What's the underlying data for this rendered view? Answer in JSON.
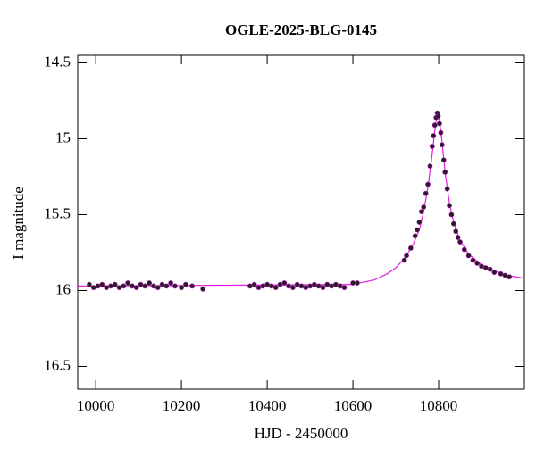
{
  "chart_data": {
    "type": "scatter",
    "title": "OGLE-2025-BLG-0145",
    "x_label": "HJD - 2450000",
    "y_label": "I magnitude",
    "xlim": [
      9958,
      11000
    ],
    "ylim": [
      16.65,
      14.45
    ],
    "xticks": [
      10000,
      10200,
      10400,
      10600,
      10800
    ],
    "yticks": [
      14.5,
      15,
      15.5,
      16,
      16.5
    ],
    "series": [
      {
        "type": "scatter",
        "color": "#2a1a2a",
        "x": [
          9985,
          9995,
          10005,
          10015,
          10025,
          10035,
          10045,
          10055,
          10065,
          10075,
          10085,
          10095,
          10105,
          10115,
          10125,
          10135,
          10145,
          10155,
          10165,
          10175,
          10185,
          10200,
          10210,
          10225,
          10250,
          10360,
          10370,
          10380,
          10390,
          10400,
          10410,
          10420,
          10430,
          10440,
          10450,
          10460,
          10470,
          10480,
          10490,
          10500,
          10510,
          10520,
          10530,
          10540,
          10550,
          10560,
          10570,
          10580,
          10600,
          10610,
          10720,
          10725,
          10735,
          10745,
          10750,
          10755,
          10760,
          10765,
          10770,
          10775,
          10780,
          10785,
          10788,
          10791,
          10794,
          10797,
          10799,
          10802,
          10805,
          10808,
          10812,
          10815,
          10820,
          10825,
          10830,
          10835,
          10840,
          10845,
          10850,
          10860,
          10870,
          10880,
          10890,
          10900,
          10910,
          10920,
          10930,
          10945,
          10955,
          10965
        ],
        "values": [
          15.96,
          15.98,
          15.97,
          15.96,
          15.98,
          15.97,
          15.96,
          15.98,
          15.97,
          15.95,
          15.97,
          15.98,
          15.96,
          15.97,
          15.95,
          15.97,
          15.98,
          15.96,
          15.97,
          15.95,
          15.97,
          15.98,
          15.96,
          15.97,
          15.99,
          15.97,
          15.96,
          15.98,
          15.97,
          15.96,
          15.97,
          15.98,
          15.96,
          15.95,
          15.97,
          15.98,
          15.96,
          15.97,
          15.98,
          15.97,
          15.96,
          15.97,
          15.98,
          15.96,
          15.97,
          15.96,
          15.97,
          15.98,
          15.95,
          15.95,
          15.8,
          15.77,
          15.72,
          15.64,
          15.6,
          15.55,
          15.48,
          15.45,
          15.36,
          15.3,
          15.18,
          15.05,
          14.98,
          14.91,
          14.86,
          14.83,
          14.85,
          14.9,
          14.96,
          15.04,
          15.14,
          15.22,
          15.33,
          15.44,
          15.5,
          15.56,
          15.61,
          15.65,
          15.68,
          15.73,
          15.77,
          15.8,
          15.82,
          15.84,
          15.85,
          15.86,
          15.88,
          15.89,
          15.9,
          15.91
        ]
      },
      {
        "type": "line",
        "color": "#e020e0",
        "x": [
          9958,
          10600,
          10650,
          10680,
          10700,
          10720,
          10740,
          10755,
          10765,
          10775,
          10785,
          10792,
          10797,
          10802,
          10808,
          10815,
          10825,
          10835,
          10850,
          10870,
          10900,
          10930,
          10960,
          11000
        ],
        "values": [
          15.97,
          15.96,
          15.93,
          15.89,
          15.85,
          15.79,
          15.7,
          15.6,
          15.48,
          15.32,
          15.1,
          14.92,
          14.84,
          14.88,
          15.02,
          15.22,
          15.42,
          15.55,
          15.67,
          15.76,
          15.83,
          15.87,
          15.9,
          15.92
        ]
      }
    ]
  }
}
